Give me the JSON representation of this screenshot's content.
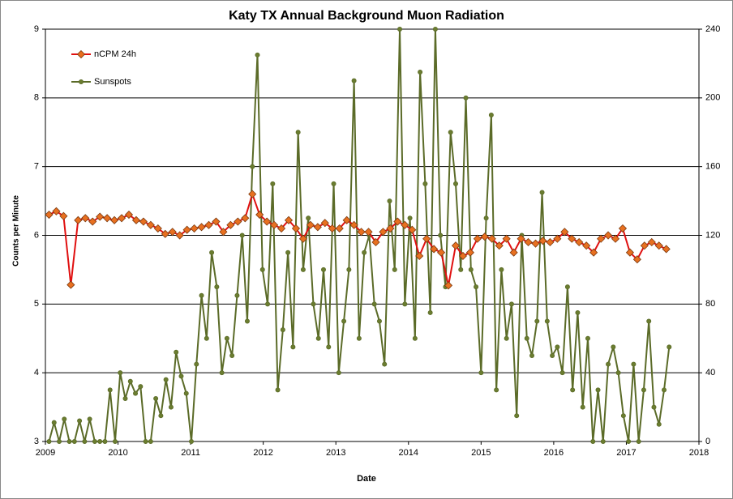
{
  "chart_data": {
    "type": "line",
    "title": "Katy TX Annual Background Muon Radiation",
    "x_label": "Date",
    "y_label": "Counts per Minute",
    "xlim": [
      2009,
      2018
    ],
    "xticks": [
      2009,
      2010,
      2011,
      2012,
      2013,
      2014,
      2015,
      2016,
      2017,
      2018
    ],
    "ylim": [
      3,
      9
    ],
    "yticks": [
      3,
      4,
      5,
      6,
      7,
      8,
      9
    ],
    "y2lim": [
      0,
      240
    ],
    "y2ticks": [
      0,
      40,
      80,
      120,
      160,
      200,
      240
    ],
    "grid": true,
    "legend": "upper left",
    "series": [
      {
        "name": "nCPM 24h",
        "color": "#e01010",
        "marker_color": "#e87020",
        "marker": "diamond",
        "x": [
          2009.05,
          2009.15,
          2009.25,
          2009.35,
          2009.45,
          2009.55,
          2009.65,
          2009.75,
          2009.85,
          2009.95,
          2010.05,
          2010.15,
          2010.25,
          2010.35,
          2010.45,
          2010.55,
          2010.65,
          2010.75,
          2010.85,
          2010.95,
          2011.05,
          2011.15,
          2011.25,
          2011.35,
          2011.45,
          2011.55,
          2011.65,
          2011.75,
          2011.85,
          2011.95,
          2012.05,
          2012.15,
          2012.25,
          2012.35,
          2012.45,
          2012.55,
          2012.65,
          2012.75,
          2012.85,
          2012.95,
          2013.05,
          2013.15,
          2013.25,
          2013.35,
          2013.45,
          2013.55,
          2013.65,
          2013.75,
          2013.85,
          2013.95,
          2014.05,
          2014.15,
          2014.25,
          2014.35,
          2014.45,
          2014.55,
          2014.65,
          2014.75,
          2014.85,
          2014.95,
          2015.05,
          2015.15,
          2015.25,
          2015.35,
          2015.45,
          2015.55,
          2015.65,
          2015.75,
          2015.85,
          2015.95,
          2016.05,
          2016.15,
          2016.25,
          2016.35,
          2016.45,
          2016.55,
          2016.65,
          2016.75,
          2016.85,
          2016.95,
          2017.05,
          2017.15,
          2017.25,
          2017.35,
          2017.45,
          2017.55
        ],
        "values": [
          6.3,
          6.35,
          6.28,
          5.28,
          6.22,
          6.25,
          6.2,
          6.27,
          6.25,
          6.22,
          6.25,
          6.3,
          6.22,
          6.2,
          6.15,
          6.1,
          6.02,
          6.05,
          6.0,
          6.08,
          6.1,
          6.12,
          6.15,
          6.2,
          6.05,
          6.15,
          6.2,
          6.25,
          6.6,
          6.3,
          6.2,
          6.15,
          6.1,
          6.22,
          6.1,
          5.95,
          6.15,
          6.12,
          6.18,
          6.1,
          6.1,
          6.22,
          6.15,
          6.05,
          6.05,
          5.9,
          6.05,
          6.1,
          6.2,
          6.15,
          6.08,
          5.7,
          5.95,
          5.8,
          5.75,
          5.27,
          5.85,
          5.7,
          5.75,
          5.95,
          5.98,
          5.95,
          5.85,
          5.95,
          5.75,
          5.95,
          5.9,
          5.88,
          5.92,
          5.9,
          5.95,
          6.05,
          5.95,
          5.9,
          5.85,
          5.75,
          5.95,
          6.0,
          5.95,
          6.1,
          5.75,
          5.65,
          5.85,
          5.9,
          5.85,
          5.8
        ]
      },
      {
        "name": "Sunspots",
        "color": "#5b6b28",
        "marker_color": "#6b7d30",
        "marker": "circle",
        "axis": "y2",
        "x": [
          2009.05,
          2009.12,
          2009.19,
          2009.26,
          2009.33,
          2009.4,
          2009.47,
          2009.54,
          2009.61,
          2009.68,
          2009.75,
          2009.82,
          2009.89,
          2009.96,
          2010.03,
          2010.1,
          2010.17,
          2010.24,
          2010.31,
          2010.38,
          2010.45,
          2010.52,
          2010.59,
          2010.66,
          2010.73,
          2010.8,
          2010.87,
          2010.94,
          2011.01,
          2011.08,
          2011.15,
          2011.22,
          2011.29,
          2011.36,
          2011.43,
          2011.5,
          2011.57,
          2011.64,
          2011.71,
          2011.78,
          2011.85,
          2011.92,
          2011.99,
          2012.06,
          2012.13,
          2012.2,
          2012.27,
          2012.34,
          2012.41,
          2012.48,
          2012.55,
          2012.62,
          2012.69,
          2012.76,
          2012.83,
          2012.9,
          2012.97,
          2013.04,
          2013.11,
          2013.18,
          2013.25,
          2013.32,
          2013.39,
          2013.46,
          2013.53,
          2013.6,
          2013.67,
          2013.74,
          2013.81,
          2013.88,
          2013.95,
          2014.02,
          2014.09,
          2014.16,
          2014.23,
          2014.3,
          2014.37,
          2014.44,
          2014.51,
          2014.58,
          2014.65,
          2014.72,
          2014.79,
          2014.86,
          2014.93,
          2015.0,
          2015.07,
          2015.14,
          2015.21,
          2015.28,
          2015.35,
          2015.42,
          2015.49,
          2015.56,
          2015.63,
          2015.7,
          2015.77,
          2015.84,
          2015.91,
          2015.98,
          2016.05,
          2016.12,
          2016.19,
          2016.26,
          2016.33,
          2016.4,
          2016.47,
          2016.54,
          2016.61,
          2016.68,
          2016.75,
          2016.82,
          2016.89,
          2016.96,
          2017.03,
          2017.1,
          2017.17,
          2017.24,
          2017.31,
          2017.38,
          2017.45,
          2017.52,
          2017.59
        ],
        "values": [
          0,
          11,
          0,
          13,
          0,
          0,
          12,
          0,
          13,
          0,
          0,
          0,
          30,
          0,
          40,
          25,
          35,
          28,
          32,
          0,
          0,
          25,
          15,
          36,
          20,
          52,
          38,
          28,
          0,
          45,
          85,
          60,
          110,
          90,
          40,
          60,
          50,
          85,
          120,
          70,
          160,
          225,
          100,
          80,
          150,
          30,
          65,
          110,
          55,
          180,
          100,
          130,
          80,
          60,
          100,
          55,
          150,
          40,
          70,
          100,
          210,
          60,
          110,
          120,
          80,
          70,
          45,
          140,
          100,
          240,
          80,
          130,
          60,
          215,
          150,
          75,
          240,
          120,
          90,
          180,
          150,
          100,
          200,
          100,
          90,
          40,
          130,
          190,
          30,
          100,
          60,
          80,
          15,
          120,
          60,
          50,
          70,
          145,
          70,
          50,
          55,
          40,
          90,
          30,
          75,
          20,
          60,
          0,
          30,
          0,
          45,
          55,
          40,
          15,
          0,
          45,
          0,
          30,
          70,
          20,
          10,
          30,
          55
        ]
      }
    ]
  }
}
